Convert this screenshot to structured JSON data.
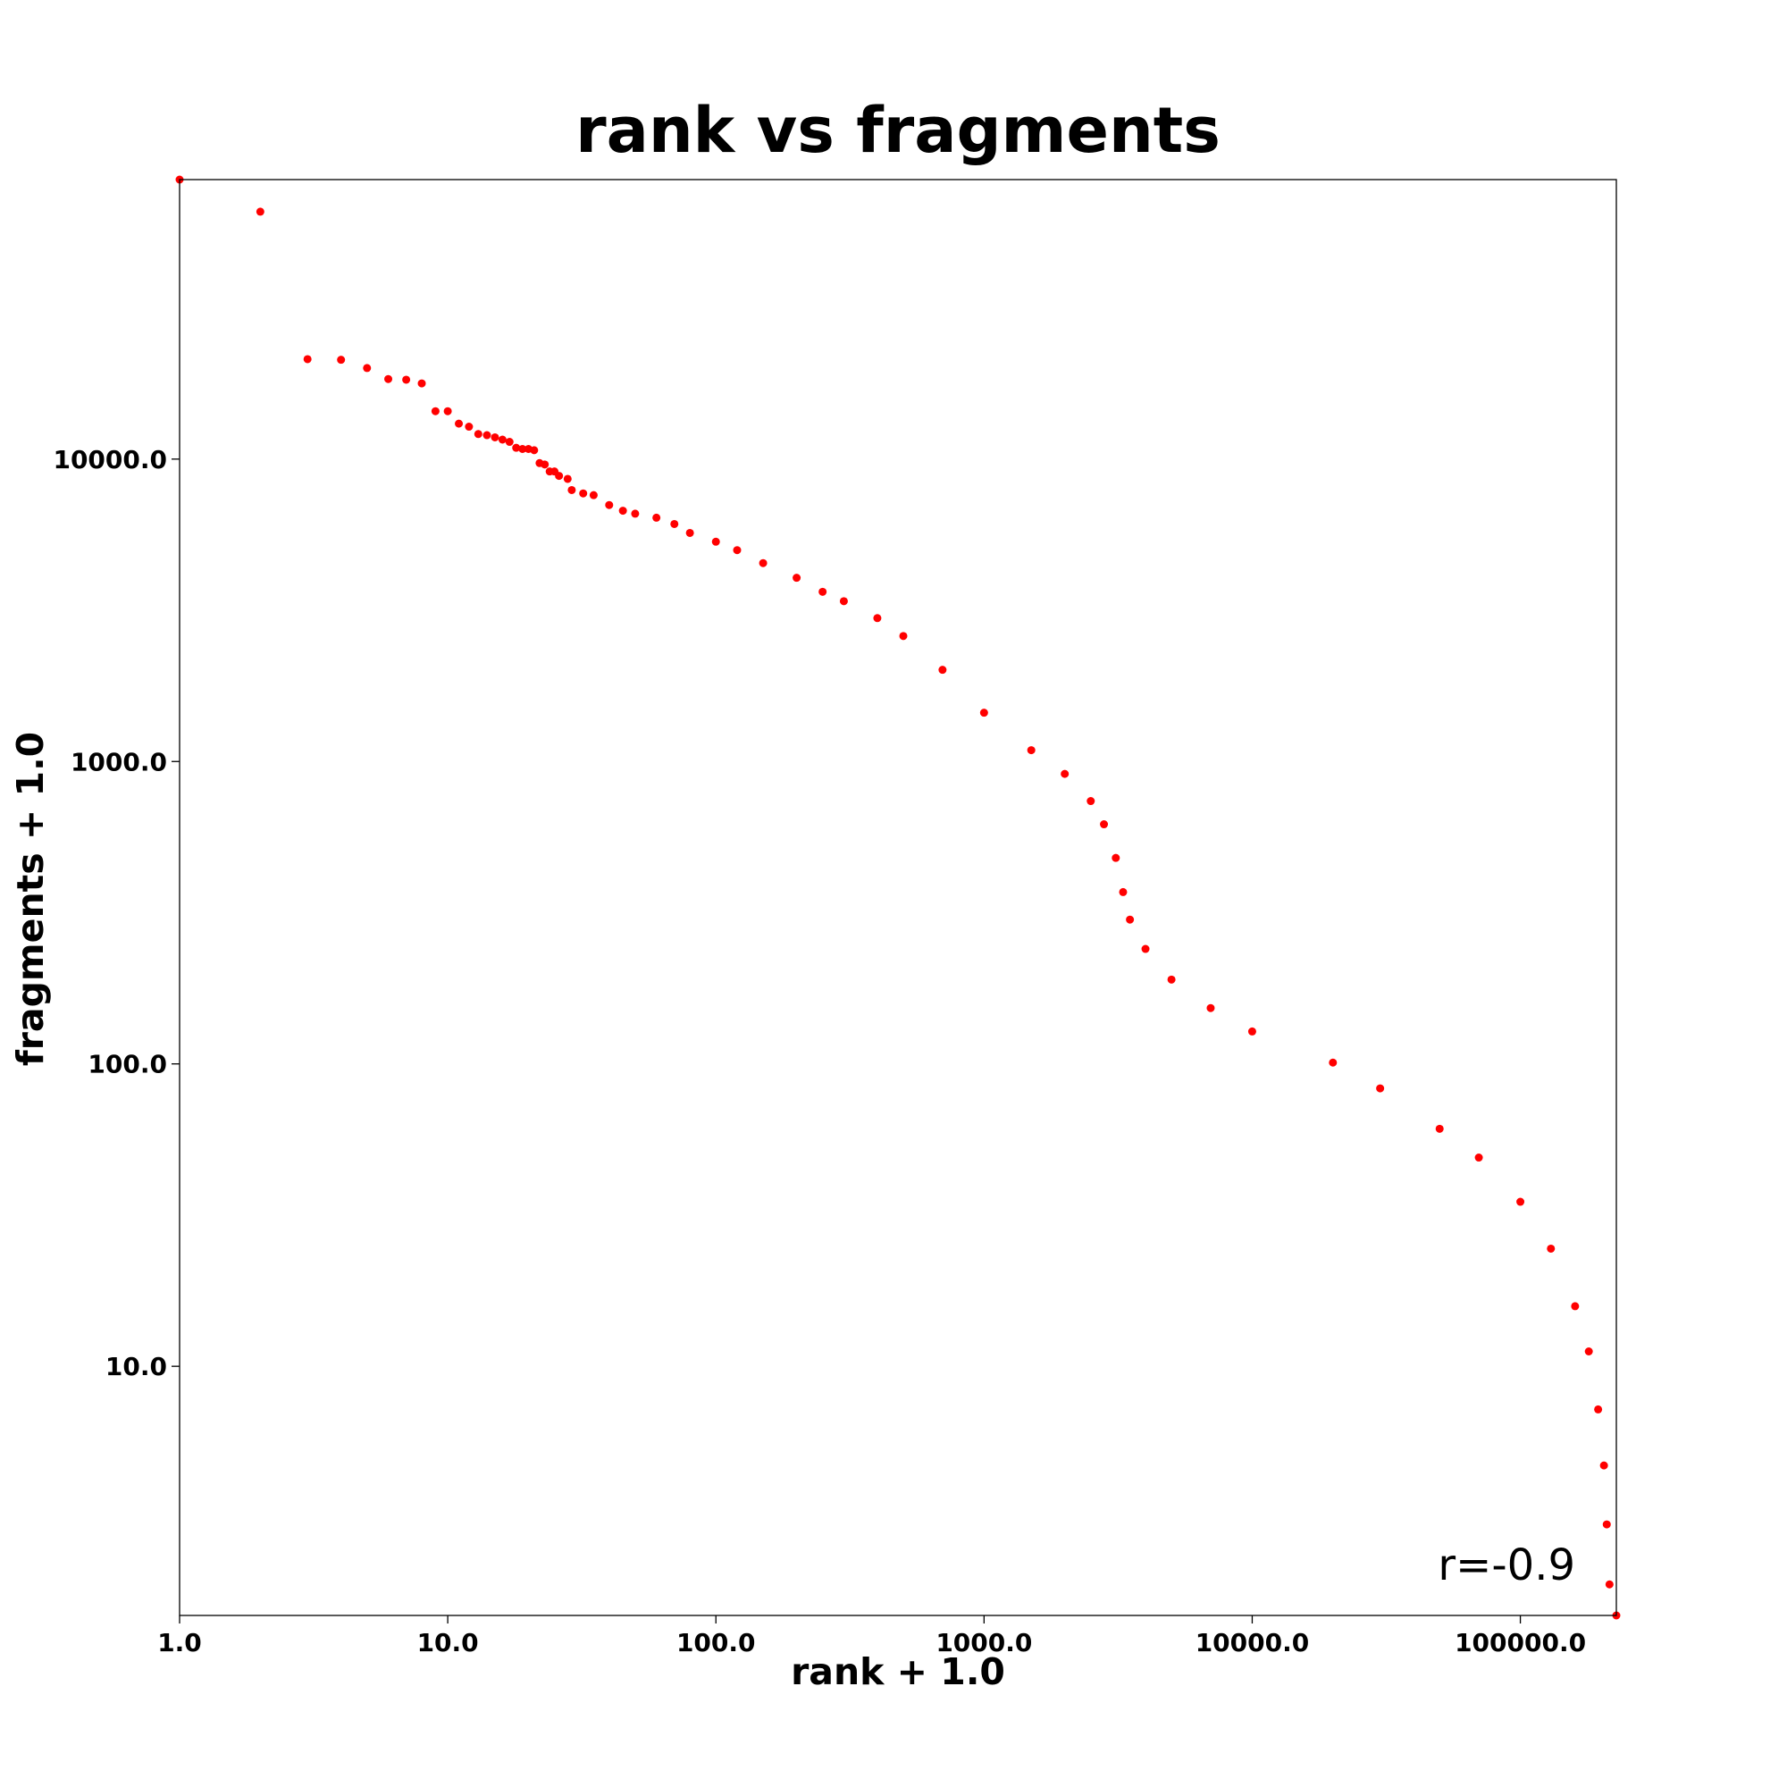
{
  "chart_data": {
    "type": "scatter",
    "title": "rank vs fragments",
    "x_label": "rank + 1.0",
    "y_label": "fragments + 1.0",
    "annotation": "r=-0.9",
    "xscale": "log",
    "yscale": "log",
    "grid": false,
    "xlim": [
      1,
      228000
    ],
    "ylim": [
      1.5,
      84000
    ],
    "xticks": [
      {
        "value": 1,
        "label": "1.0"
      },
      {
        "value": 10,
        "label": "10.0"
      },
      {
        "value": 100,
        "label": "100.0"
      },
      {
        "value": 1000,
        "label": "1000.0"
      },
      {
        "value": 10000,
        "label": "10000.0"
      },
      {
        "value": 100000,
        "label": "100000.0"
      }
    ],
    "yticks": [
      {
        "value": 10,
        "label": "10.0"
      },
      {
        "value": 100,
        "label": "100.0"
      },
      {
        "value": 1000,
        "label": "1000.0"
      },
      {
        "value": 10000,
        "label": "10000.0"
      }
    ],
    "series": [
      {
        "color": "#ff0000",
        "x": [
          1,
          2,
          3,
          4,
          5,
          6,
          7,
          8,
          9,
          10,
          11,
          12,
          13,
          14,
          15,
          16,
          17,
          18,
          19,
          20,
          21,
          22,
          23,
          24,
          25,
          26,
          28,
          29,
          32,
          35,
          40,
          45,
          50,
          60,
          70,
          80,
          100,
          120,
          150,
          200,
          250,
          300,
          400,
          500,
          700,
          1000,
          1500,
          2000,
          2500,
          2800,
          3100,
          3300,
          3500,
          4000,
          5000,
          7000,
          10000,
          20000,
          30000,
          50000,
          70000,
          100000,
          130000,
          160000,
          180000,
          195000,
          205000,
          210000,
          215000,
          228000
        ],
        "values": [
          84000,
          65800,
          21400,
          21300,
          20000,
          18400,
          18300,
          17800,
          14400,
          14400,
          13100,
          12800,
          12100,
          12000,
          11800,
          11600,
          11400,
          10900,
          10800,
          10800,
          10700,
          9700,
          9600,
          9100,
          9100,
          8800,
          8600,
          7900,
          7700,
          7600,
          7050,
          6750,
          6600,
          6400,
          6100,
          5700,
          5330,
          5000,
          4530,
          4050,
          3640,
          3390,
          2980,
          2600,
          2010,
          1450,
          1090,
          910,
          740,
          620,
          480,
          370,
          300,
          240,
          190,
          153,
          128,
          101,
          83,
          61,
          49,
          35,
          24.5,
          15.8,
          11.2,
          7.2,
          4.7,
          3.0,
          1.9,
          1.5
        ]
      }
    ]
  }
}
